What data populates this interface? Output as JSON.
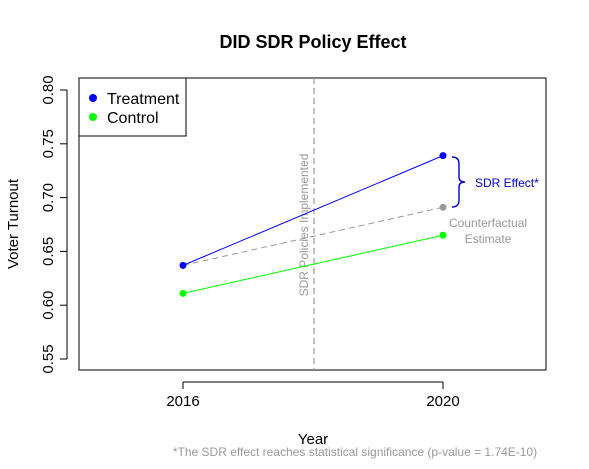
{
  "chart_data": {
    "type": "line",
    "title": "DID SDR Policy Effect",
    "xlabel": "Year",
    "ylabel": "Voter Turnout",
    "categories": [
      "2016",
      "2020"
    ],
    "ylim": [
      0.55,
      0.8
    ],
    "yticks": [
      "0.55",
      "0.60",
      "0.65",
      "0.70",
      "0.75",
      "0.80"
    ],
    "series": [
      {
        "name": "Treatment",
        "color": "#0000ff",
        "values": [
          0.637,
          0.739
        ]
      },
      {
        "name": "Control",
        "color": "#00ff00",
        "values": [
          0.611,
          0.665
        ]
      }
    ],
    "counterfactual": {
      "color": "#999999",
      "values": [
        0.637,
        0.691
      ],
      "label_line1": "Counterfactual",
      "label_line2": "Estimate"
    },
    "policy_line": {
      "label": "SDR Policies Implemented",
      "color": "#999999"
    },
    "effect_bracket": {
      "label": "SDR Effect*",
      "color": "#0000cc"
    },
    "legend_position": "top-left",
    "grid": false,
    "footnote": "*The SDR effect reaches statistical significance (p-value = 1.74E-10)"
  }
}
